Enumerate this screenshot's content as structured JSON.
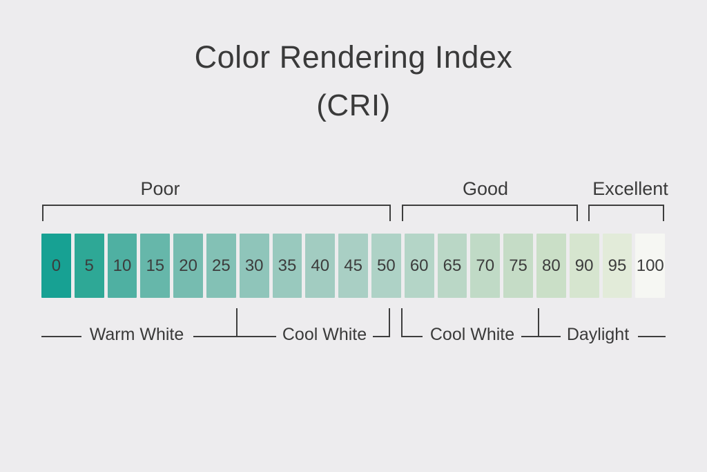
{
  "title": "Color Rendering Index",
  "subtitle": "(CRI)",
  "quality_labels": {
    "poor": "Poor",
    "good": "Good",
    "excellent": "Excellent"
  },
  "scale": {
    "min": 0,
    "max": 100,
    "cells": [
      {
        "value": "0",
        "color": "#17a193"
      },
      {
        "value": "5",
        "color": "#2ea896"
      },
      {
        "value": "10",
        "color": "#4fb0a2"
      },
      {
        "value": "15",
        "color": "#66b7aa"
      },
      {
        "value": "20",
        "color": "#76bcb0"
      },
      {
        "value": "25",
        "color": "#83c1b5"
      },
      {
        "value": "30",
        "color": "#8fc5ba"
      },
      {
        "value": "35",
        "color": "#99c9be"
      },
      {
        "value": "40",
        "color": "#a2ccc1"
      },
      {
        "value": "45",
        "color": "#a9cfc4"
      },
      {
        "value": "50",
        "color": "#aed2c6"
      },
      {
        "value": "60",
        "color": "#b4d5c7"
      },
      {
        "value": "65",
        "color": "#bad7c6"
      },
      {
        "value": "70",
        "color": "#c0dac6"
      },
      {
        "value": "75",
        "color": "#c5dcc6"
      },
      {
        "value": "80",
        "color": "#cadfc7"
      },
      {
        "value": "90",
        "color": "#d6e5cf"
      },
      {
        "value": "95",
        "color": "#e2ebd9"
      },
      {
        "value": "100",
        "color": "#f6f7f3"
      }
    ]
  },
  "light_type_labels": {
    "warm_white": "Warm White",
    "cool_white_1": "Cool White",
    "cool_white_2": "Cool White",
    "daylight": "Daylight"
  },
  "colors": {
    "background": "#edecee",
    "line": "#3d3d3d",
    "text": "#3a3a3a"
  }
}
